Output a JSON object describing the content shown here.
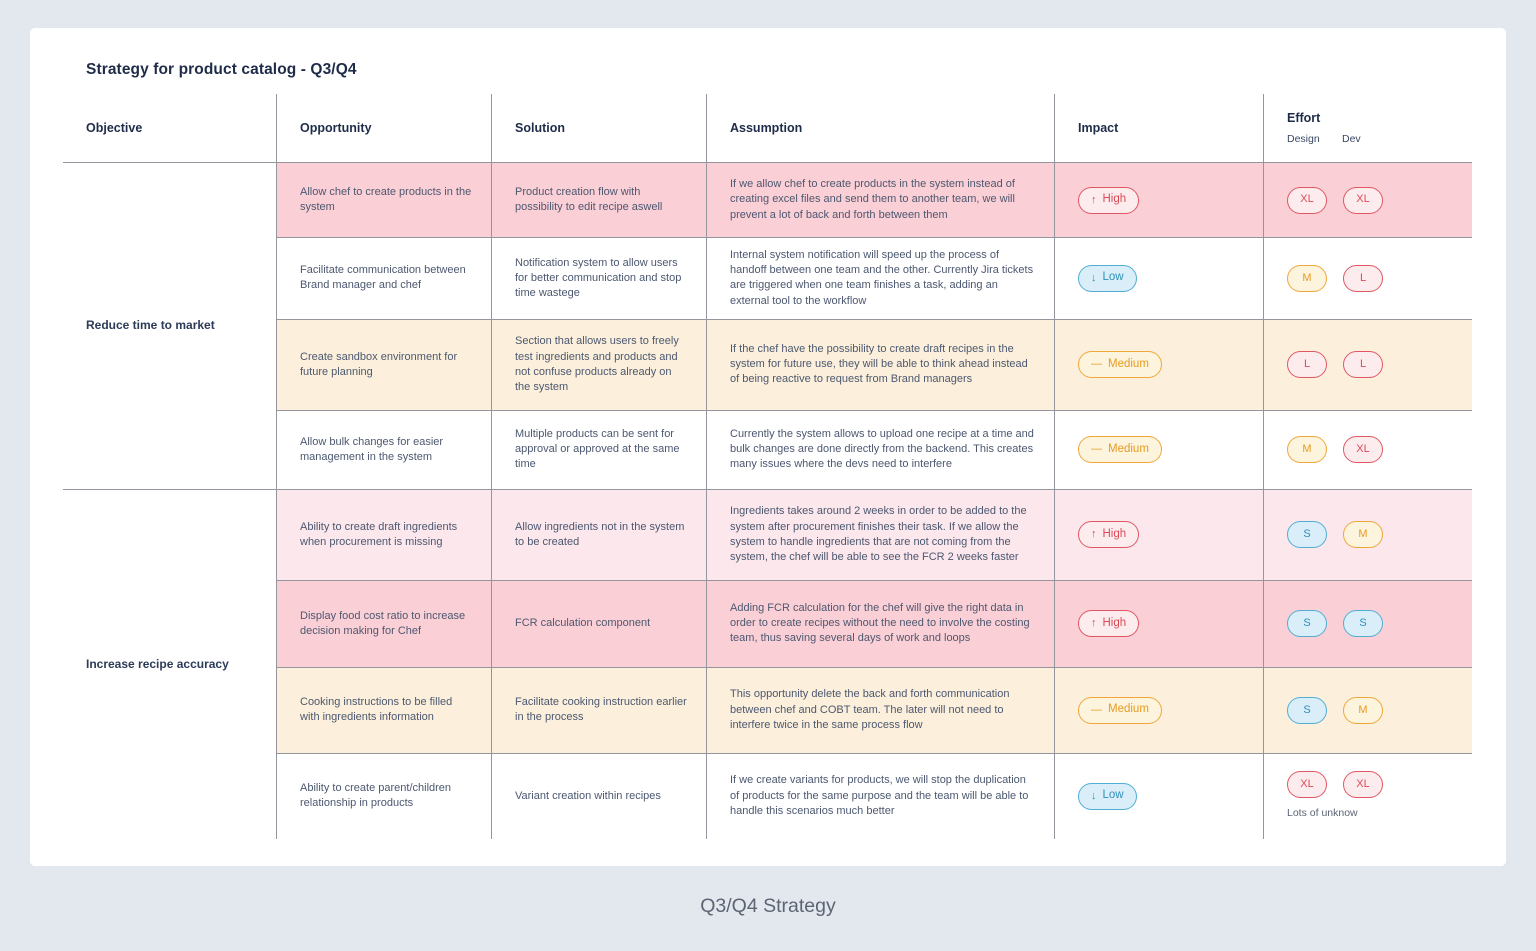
{
  "page": {
    "title": "Strategy for product catalog - Q3/Q4",
    "footer": "Q3/Q4 Strategy"
  },
  "colors": {
    "page_background": "#e3e7ee",
    "card_background": "#ffffff",
    "row_pink": "#fbcfd6",
    "row_light_pink": "#fbe7ec",
    "row_cream": "#fcf0dc",
    "grid_line": "#94959d",
    "badge_red": "#e05763",
    "badge_orange": "#f0a73a",
    "badge_blue": "#51aed3"
  },
  "table": {
    "headers": {
      "objective": "Objective",
      "opportunity": "Opportunity",
      "solution": "Solution",
      "assumption": "Assumption",
      "impact": "Impact",
      "effort": "Effort",
      "effort_sub": [
        "Design",
        "Dev"
      ]
    },
    "groups": [
      {
        "objective": "Reduce time to market",
        "rows": [
          {
            "bg": "pink",
            "opportunity": "Allow chef to create products in the system",
            "solution": "Product creation flow with possibility to edit recipe aswell",
            "assumption": "If we allow chef to create products in the system instead of creating excel files and send them to another team, we will prevent a lot of back and forth between them",
            "impact": {
              "label": "High",
              "icon": "↑",
              "color": "red"
            },
            "design": {
              "label": "XL",
              "color": "red"
            },
            "dev": {
              "label": "XL",
              "color": "red"
            }
          },
          {
            "bg": "white",
            "opportunity": "Facilitate communication between Brand manager and chef",
            "solution": "Notification system to allow users for better communication and stop time wastege",
            "assumption": "Internal system notification will speed up the process of handoff between one team and the other. Currently Jira tickets are triggered when one team finishes a task, adding an external tool to the workflow",
            "impact": {
              "label": "Low",
              "icon": "↓",
              "color": "blue"
            },
            "design": {
              "label": "M",
              "color": "orange"
            },
            "dev": {
              "label": "L",
              "color": "red"
            }
          },
          {
            "bg": "cream",
            "opportunity": "Create sandbox environment for future planning",
            "solution": "Section that allows users to freely test ingredients and products and not confuse products already on the system",
            "assumption": "If the chef have the possibility to create draft recipes in the system for future use, they will be able to think ahead instead of being reactive to request from Brand managers",
            "impact": {
              "label": "Medium",
              "icon": "—",
              "color": "orange"
            },
            "design": {
              "label": "L",
              "color": "red"
            },
            "dev": {
              "label": "L",
              "color": "red"
            }
          },
          {
            "bg": "white",
            "opportunity": "Allow bulk changes for easier management in the system",
            "solution": "Multiple products can be sent for approval or approved at the same time",
            "assumption": "Currently the system allows to upload one recipe at a time and bulk changes are done directly from the backend. This creates many issues where the devs need to interfere",
            "impact": {
              "label": "Medium",
              "icon": "—",
              "color": "orange"
            },
            "design": {
              "label": "M",
              "color": "orange"
            },
            "dev": {
              "label": "XL",
              "color": "red"
            }
          }
        ]
      },
      {
        "objective": "Increase recipe accuracy",
        "rows": [
          {
            "bg": "lightpink",
            "opportunity": "Ability to create draft ingredients when procurement is missing",
            "solution": "Allow ingredients not in the system to be created",
            "assumption": "Ingredients takes around 2 weeks in order to be added to the system after procurement finishes their task. If we allow the system to handle ingredients that are not coming from the system, the chef will be able to see the FCR 2 weeks faster",
            "impact": {
              "label": "High",
              "icon": "↑",
              "color": "red"
            },
            "design": {
              "label": "S",
              "color": "blue"
            },
            "dev": {
              "label": "M",
              "color": "orange"
            }
          },
          {
            "bg": "pink",
            "opportunity": "Display food cost ratio to increase decision making for Chef",
            "solution": "FCR calculation component",
            "assumption": "Adding FCR calculation for the chef will give the right data in order to create recipes without the need to involve the costing team, thus saving several days of work and loops",
            "impact": {
              "label": "High",
              "icon": "↑",
              "color": "red"
            },
            "design": {
              "label": "S",
              "color": "blue"
            },
            "dev": {
              "label": "S",
              "color": "blue"
            }
          },
          {
            "bg": "cream",
            "opportunity": "Cooking instructions to be filled with ingredients information",
            "solution": "Facilitate cooking instruction earlier in the process",
            "assumption": "This opportunity delete the back and forth communication between chef and COBT team. The later will not need to interfere twice in the same process flow",
            "impact": {
              "label": "Medium",
              "icon": "—",
              "color": "orange"
            },
            "design": {
              "label": "S",
              "color": "blue"
            },
            "dev": {
              "label": "M",
              "color": "orange"
            }
          },
          {
            "bg": "white",
            "opportunity": "Ability to create parent/children relationship in products",
            "solution": "Variant creation within recipes",
            "assumption": "If we create variants for products, we will stop the duplication of products for the same purpose and the team will be able to handle this scenarios much better",
            "impact": {
              "label": "Low",
              "icon": "↓",
              "color": "blue"
            },
            "design": {
              "label": "XL",
              "color": "red"
            },
            "dev": {
              "label": "XL",
              "color": "red"
            },
            "note": "Lots of unknow"
          }
        ]
      }
    ]
  }
}
